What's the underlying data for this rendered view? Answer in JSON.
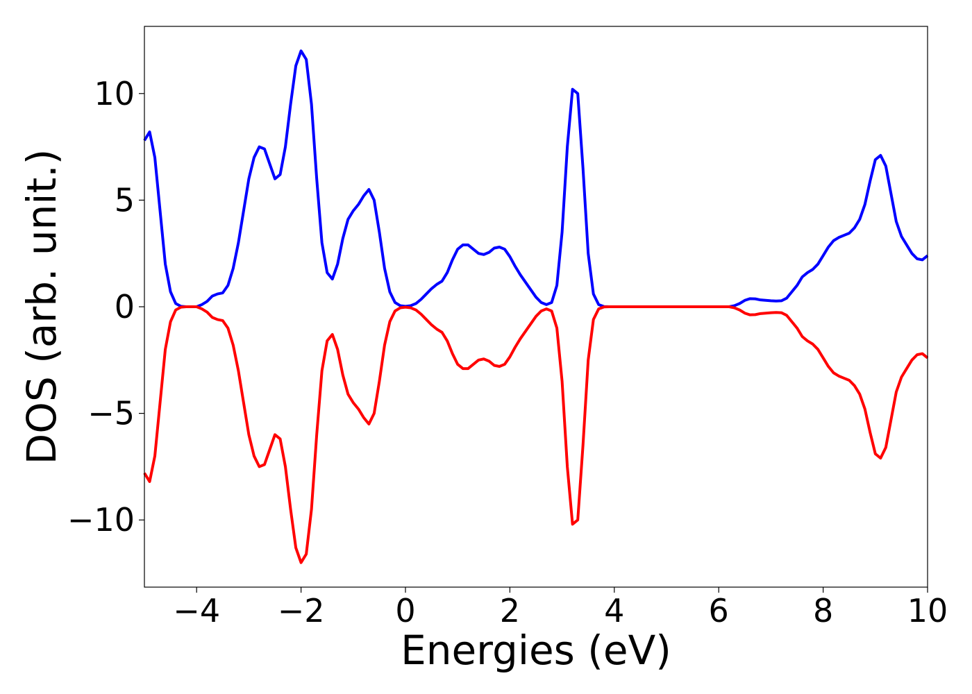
{
  "chart_data": {
    "type": "line",
    "xlabel": "Energies (eV)",
    "ylabel": "DOS (arb. unit.)",
    "xlim": [
      -5,
      10
    ],
    "ylim": [
      -13.15,
      13.15
    ],
    "xticks": [
      {
        "value": -4,
        "label": "−4"
      },
      {
        "value": -2,
        "label": "−2"
      },
      0,
      2,
      4,
      6,
      8,
      10
    ],
    "yticks": [
      {
        "value": -10,
        "label": "−10"
      },
      {
        "value": -5,
        "label": "−5"
      },
      0,
      5,
      10
    ],
    "x": [
      -5.0,
      -4.9,
      -4.8,
      -4.7,
      -4.6,
      -4.5,
      -4.4,
      -4.3,
      -4.2,
      -4.1,
      -4.0,
      -3.9,
      -3.8,
      -3.7,
      -3.6,
      -3.5,
      -3.4,
      -3.3,
      -3.2,
      -3.1,
      -3.0,
      -2.9,
      -2.8,
      -2.7,
      -2.6,
      -2.5,
      -2.4,
      -2.3,
      -2.2,
      -2.1,
      -2.0,
      -1.9,
      -1.8,
      -1.7,
      -1.6,
      -1.5,
      -1.4,
      -1.3,
      -1.2,
      -1.1,
      -1.0,
      -0.9,
      -0.8,
      -0.7,
      -0.6,
      -0.5,
      -0.4,
      -0.3,
      -0.2,
      -0.1,
      0.0,
      0.1,
      0.2,
      0.3,
      0.4,
      0.5,
      0.6,
      0.7,
      0.8,
      0.9,
      1.0,
      1.1,
      1.2,
      1.3,
      1.4,
      1.5,
      1.6,
      1.7,
      1.8,
      1.9,
      2.0,
      2.1,
      2.2,
      2.3,
      2.4,
      2.5,
      2.6,
      2.7,
      2.8,
      2.9,
      3.0,
      3.1,
      3.2,
      3.3,
      3.4,
      3.5,
      3.6,
      3.7,
      3.8,
      3.9,
      4.0,
      4.1,
      4.2,
      4.3,
      4.4,
      4.5,
      4.6,
      4.7,
      4.8,
      4.9,
      5.0,
      5.1,
      5.2,
      5.3,
      5.4,
      5.5,
      5.6,
      5.7,
      5.8,
      5.9,
      6.0,
      6.1,
      6.2,
      6.3,
      6.4,
      6.5,
      6.6,
      6.7,
      6.8,
      6.9,
      7.0,
      7.1,
      7.2,
      7.3,
      7.4,
      7.5,
      7.6,
      7.7,
      7.8,
      7.9,
      8.0,
      8.1,
      8.2,
      8.3,
      8.4,
      8.5,
      8.6,
      8.7,
      8.8,
      8.9,
      9.0,
      9.1,
      9.2,
      9.3,
      9.4,
      9.5,
      9.6,
      9.7,
      9.8,
      9.9,
      10.0
    ],
    "series": [
      {
        "color": "#0000ff",
        "values": [
          7.8,
          8.2,
          7.0,
          4.5,
          2.0,
          0.7,
          0.15,
          0.02,
          0,
          0,
          0,
          0.1,
          0.25,
          0.5,
          0.6,
          0.65,
          1.0,
          1.8,
          3.0,
          4.5,
          6.0,
          7.0,
          7.5,
          7.4,
          6.7,
          6.0,
          6.2,
          7.5,
          9.5,
          11.3,
          12.0,
          11.6,
          9.5,
          6.0,
          3.0,
          1.6,
          1.3,
          2.0,
          3.2,
          4.1,
          4.5,
          4.8,
          5.2,
          5.5,
          5.0,
          3.5,
          1.8,
          0.7,
          0.2,
          0.05,
          0.02,
          0.05,
          0.15,
          0.35,
          0.6,
          0.85,
          1.05,
          1.2,
          1.6,
          2.2,
          2.7,
          2.9,
          2.9,
          2.7,
          2.5,
          2.45,
          2.55,
          2.75,
          2.8,
          2.7,
          2.35,
          1.9,
          1.5,
          1.15,
          0.8,
          0.45,
          0.2,
          0.1,
          0.2,
          1.0,
          3.5,
          7.5,
          10.2,
          10.0,
          6.5,
          2.5,
          0.6,
          0.1,
          0.01,
          0,
          0,
          0,
          0,
          0,
          0,
          0,
          0,
          0,
          0,
          0,
          0,
          0,
          0,
          0,
          0,
          0,
          0,
          0,
          0,
          0,
          0,
          0,
          0,
          0.05,
          0.15,
          0.3,
          0.38,
          0.37,
          0.32,
          0.3,
          0.28,
          0.27,
          0.28,
          0.4,
          0.7,
          1.0,
          1.4,
          1.6,
          1.75,
          2.0,
          2.4,
          2.8,
          3.1,
          3.25,
          3.35,
          3.45,
          3.7,
          4.1,
          4.8,
          5.9,
          6.9,
          7.1,
          6.6,
          5.3,
          4.0,
          3.3,
          2.9,
          2.5,
          2.25,
          2.2,
          2.4
        ]
      },
      {
        "color": "#ff0000",
        "values": [
          -7.8,
          -8.2,
          -7.0,
          -4.5,
          -2.0,
          -0.7,
          -0.15,
          -0.02,
          0,
          0,
          0,
          -0.1,
          -0.25,
          -0.5,
          -0.6,
          -0.65,
          -1.0,
          -1.8,
          -3.0,
          -4.5,
          -6.0,
          -7.0,
          -7.5,
          -7.4,
          -6.7,
          -6.0,
          -6.2,
          -7.5,
          -9.5,
          -11.3,
          -12.0,
          -11.6,
          -9.5,
          -6.0,
          -3.0,
          -1.6,
          -1.3,
          -2.0,
          -3.2,
          -4.1,
          -4.5,
          -4.8,
          -5.2,
          -5.5,
          -5.0,
          -3.5,
          -1.8,
          -0.7,
          -0.2,
          -0.05,
          -0.02,
          -0.05,
          -0.15,
          -0.35,
          -0.6,
          -0.85,
          -1.05,
          -1.2,
          -1.6,
          -2.2,
          -2.7,
          -2.9,
          -2.9,
          -2.7,
          -2.5,
          -2.45,
          -2.55,
          -2.75,
          -2.8,
          -2.7,
          -2.35,
          -1.9,
          -1.5,
          -1.15,
          -0.8,
          -0.45,
          -0.2,
          -0.1,
          -0.2,
          -1.0,
          -3.5,
          -7.5,
          -10.2,
          -10.0,
          -6.5,
          -2.5,
          -0.6,
          -0.1,
          -0.01,
          0,
          0,
          0,
          0,
          0,
          0,
          0,
          0,
          0,
          0,
          0,
          0,
          0,
          0,
          0,
          0,
          0,
          0,
          0,
          0,
          0,
          0,
          0,
          0,
          -0.05,
          -0.15,
          -0.3,
          -0.38,
          -0.37,
          -0.32,
          -0.3,
          -0.28,
          -0.27,
          -0.28,
          -0.4,
          -0.7,
          -1.0,
          -1.4,
          -1.6,
          -1.75,
          -2.0,
          -2.4,
          -2.8,
          -3.1,
          -3.25,
          -3.35,
          -3.45,
          -3.7,
          -4.1,
          -4.8,
          -5.9,
          -6.9,
          -7.1,
          -6.6,
          -5.3,
          -4.0,
          -3.3,
          -2.9,
          -2.5,
          -2.25,
          -2.2,
          -2.4
        ]
      }
    ]
  }
}
